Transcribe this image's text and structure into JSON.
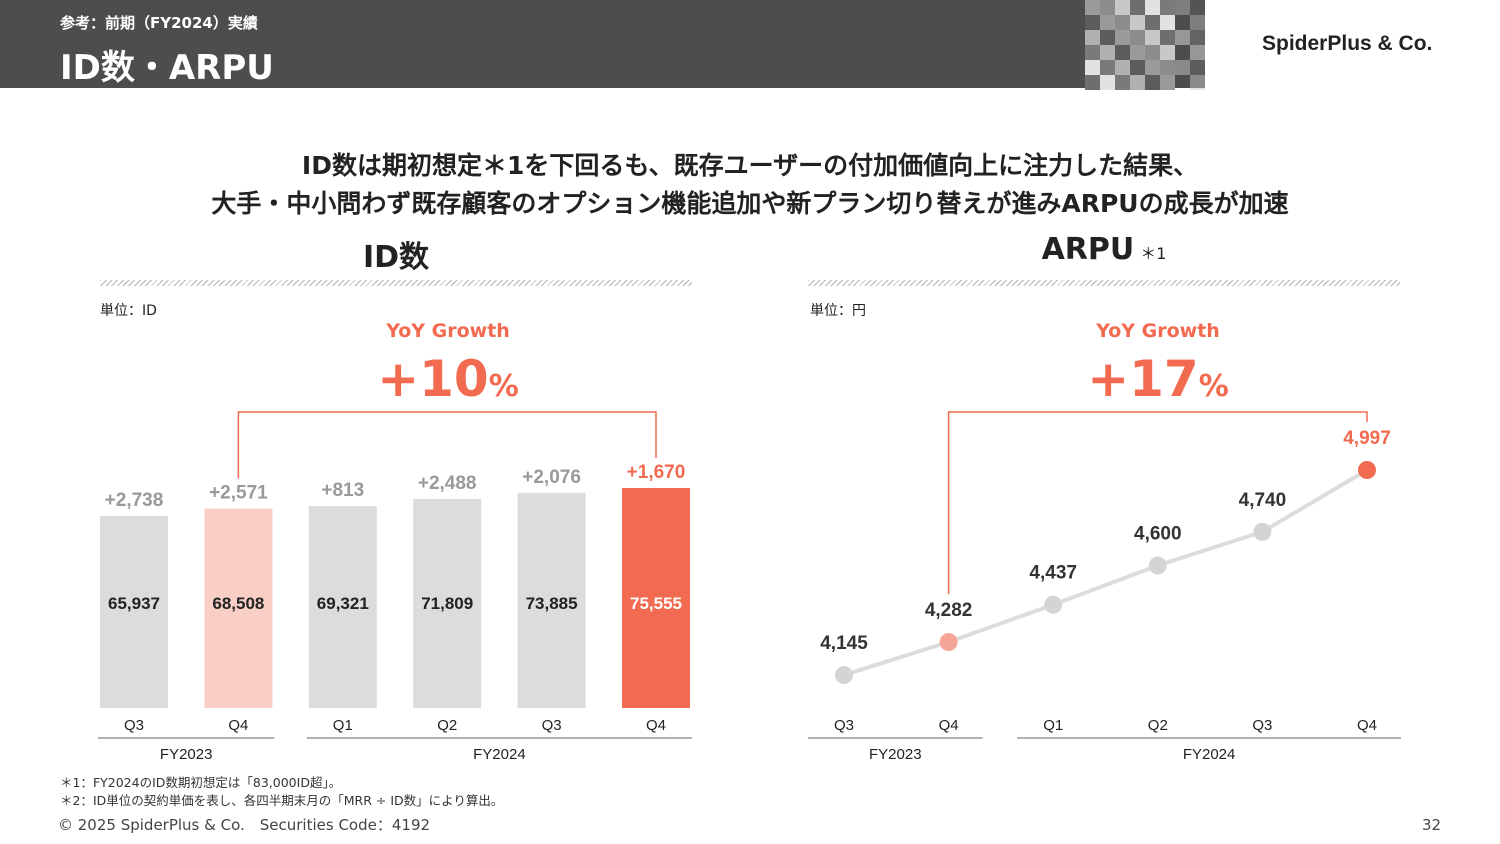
{
  "header": {
    "subtitle": "参考：前期（FY2024）実績",
    "title": "ID数・ARPU",
    "logo": "SpiderPlus & Co."
  },
  "headline": {
    "line1": "ID数は期初想定＊1を下回るも、既存ユーザーの付加価値向上に注力した結果、",
    "line2": "大手・中小問わず既存顧客のオプション機能追加や新プラン切り替えが進みARPUの成長が加速"
  },
  "colors": {
    "accent": "#f26b50",
    "accent_light": "#f9cec4",
    "gray_bar": "#dcdcdc",
    "gray_text": "#999999"
  },
  "chart_data": [
    {
      "type": "bar",
      "title": "ID数",
      "unit": "単位：ID",
      "categories": [
        "Q3",
        "Q4",
        "Q1",
        "Q2",
        "Q3",
        "Q4"
      ],
      "groups": [
        {
          "label": "FY2023",
          "span": [
            0,
            1
          ]
        },
        {
          "label": "FY2024",
          "span": [
            2,
            5
          ]
        }
      ],
      "values": [
        65937,
        68508,
        69321,
        71809,
        73885,
        75555
      ],
      "value_labels": [
        "65,937",
        "68,508",
        "69,321",
        "71,809",
        "73,885",
        "75,555"
      ],
      "increments": [
        "+2,738",
        "+2,571",
        "+813",
        "+2,488",
        "+2,076",
        "+1,670"
      ],
      "highlight": {
        "compare_from": 1,
        "compare_to": 5
      },
      "yoy": {
        "label": "YoY Growth",
        "value": "+10",
        "suffix": "%"
      }
    },
    {
      "type": "line",
      "title": "ARPU",
      "title_note": "＊1",
      "unit": "単位：円",
      "categories": [
        "Q3",
        "Q4",
        "Q1",
        "Q2",
        "Q3",
        "Q4"
      ],
      "groups": [
        {
          "label": "FY2023",
          "span": [
            0,
            1
          ]
        },
        {
          "label": "FY2024",
          "span": [
            2,
            5
          ]
        }
      ],
      "values": [
        4145,
        4282,
        4437,
        4600,
        4740,
        4997
      ],
      "value_labels": [
        "4,145",
        "4,282",
        "4,437",
        "4,600",
        "4,740",
        "4,997"
      ],
      "highlight": {
        "compare_from": 1,
        "compare_to": 5
      },
      "yoy": {
        "label": "YoY Growth",
        "value": "+17",
        "suffix": "%"
      }
    }
  ],
  "footnotes": {
    "note1": "＊1：FY2024のID数期初想定は「83,000ID超」。",
    "note2": "＊2：ID単位の契約単価を表し、各四半期末月の「MRR ÷ ID数」により算出。"
  },
  "footer": {
    "copyright": "© 2025 SpiderPlus & Co.　Securities Code：4192",
    "page": "32"
  }
}
